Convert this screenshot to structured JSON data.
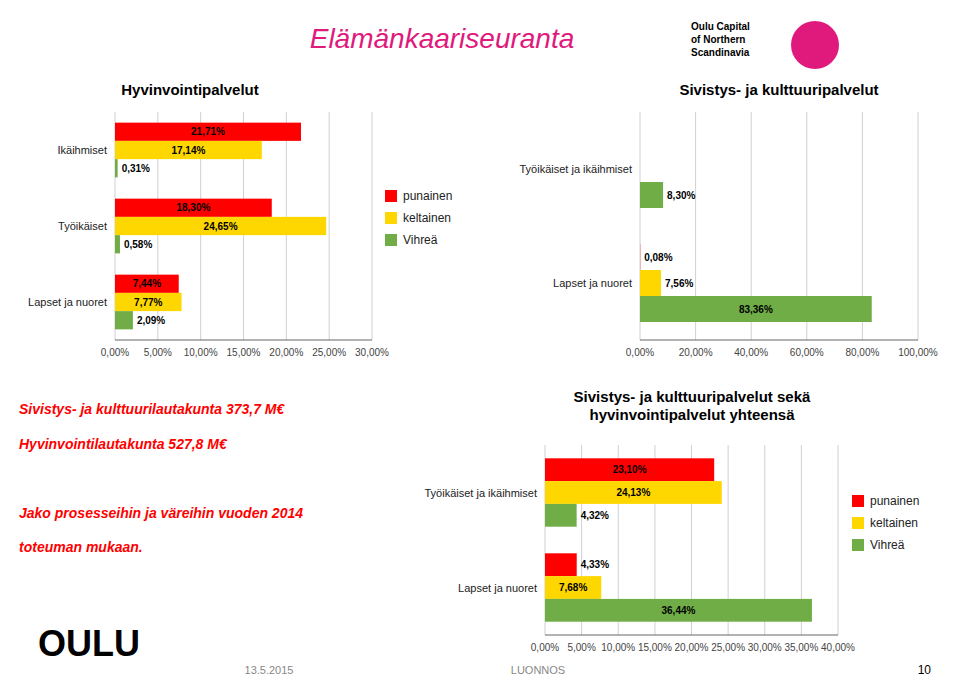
{
  "title": "Elämänkaariseuranta",
  "annotations": [
    "Oulu Capital\nof Northern\nScandinavia",
    "Sivistys- ja kulttuurilautakunta 373,7 M€",
    "Hyvinvointilautakunta 527,8 M€",
    "Jako prosesseihin ja väreihin vuoden 2014",
    "toteuman mukaan.",
    "OULU",
    "13.5.2015",
    "LUONNOS",
    "10"
  ],
  "chart_data": [
    {
      "type": "bar",
      "orientation": "horizontal",
      "title": "Hyvinvointipalvelut",
      "categories": [
        "Ikäihmiset",
        "Työikäiset",
        "Lapset ja nuoret"
      ],
      "series": [
        {
          "name": "punainen",
          "color": "#FF0000",
          "values": [
            21.71,
            18.3,
            7.44
          ],
          "value_labels": [
            "21,71%",
            "18,30%",
            "7,44%"
          ]
        },
        {
          "name": "keltainen",
          "color": "#FFD700",
          "values": [
            17.14,
            24.65,
            7.77
          ],
          "value_labels": [
            "17,14%",
            "24,65%",
            "7,77%"
          ]
        },
        {
          "name": "Vihreä",
          "color": "#70AD47",
          "values": [
            0.31,
            0.58,
            2.09
          ],
          "value_labels": [
            "0,31%",
            "0,58%",
            "2,09%"
          ]
        }
      ],
      "xlim": [
        0,
        30
      ],
      "xticks": [
        {
          "value": 0,
          "label": "0,00%"
        },
        {
          "value": 5,
          "label": "5,00%"
        },
        {
          "value": 10,
          "label": "10,00%"
        },
        {
          "value": 15,
          "label": "15,00%"
        },
        {
          "value": 20,
          "label": "20,00%"
        },
        {
          "value": 25,
          "label": "25,00%"
        },
        {
          "value": 30,
          "label": "30,00%"
        }
      ],
      "grid": true,
      "data_labels": true,
      "legend": "right"
    },
    {
      "type": "bar",
      "orientation": "horizontal",
      "title": "Sivistys- ja kulttuuripalvelut",
      "categories": [
        "Työikäiset ja ikäihmiset",
        "Lapset ja nuoret"
      ],
      "series": [
        {
          "name": "punainen",
          "color": "#FF0000",
          "values": [
            0.0,
            0.08
          ],
          "value_labels": [
            null,
            "0,08%"
          ]
        },
        {
          "name": "keltainen",
          "color": "#FFD700",
          "values": [
            0.0,
            7.56
          ],
          "value_labels": [
            null,
            "7,56%"
          ]
        },
        {
          "name": "Vihreä",
          "color": "#70AD47",
          "values": [
            8.3,
            83.36
          ],
          "value_labels": [
            "8,30%",
            "83,36%"
          ]
        }
      ],
      "xlim": [
        0,
        100
      ],
      "xticks": [
        {
          "value": 0,
          "label": "0,00%"
        },
        {
          "value": 20,
          "label": "20,00%"
        },
        {
          "value": 40,
          "label": "40,00%"
        },
        {
          "value": 60,
          "label": "60,00%"
        },
        {
          "value": 80,
          "label": "80,00%"
        },
        {
          "value": 100,
          "label": "100,00%"
        }
      ],
      "grid": true,
      "data_labels": true
    },
    {
      "type": "bar",
      "orientation": "horizontal",
      "title": "Sivistys- ja kulttuuripalvelut sekä\nhyvinvointipalvelut yhteensä",
      "categories": [
        "Työikäiset ja ikäihmiset",
        "Lapset ja nuoret"
      ],
      "series": [
        {
          "name": "punainen",
          "color": "#FF0000",
          "values": [
            23.1,
            4.33
          ],
          "value_labels": [
            "23,10%",
            "4,33%"
          ]
        },
        {
          "name": "keltainen",
          "color": "#FFD700",
          "values": [
            24.13,
            7.68
          ],
          "value_labels": [
            "24,13%",
            "7,68%"
          ]
        },
        {
          "name": "Vihreä",
          "color": "#70AD47",
          "values": [
            4.32,
            36.44
          ],
          "value_labels": [
            "4,32%",
            "36,44%"
          ]
        }
      ],
      "xlim": [
        0,
        40
      ],
      "xticks": [
        {
          "value": 0,
          "label": "0,00%"
        },
        {
          "value": 5,
          "label": "5,00%"
        },
        {
          "value": 10,
          "label": "10,00%"
        },
        {
          "value": 15,
          "label": "15,00%"
        },
        {
          "value": 20,
          "label": "20,00%"
        },
        {
          "value": 25,
          "label": "25,00%"
        },
        {
          "value": 30,
          "label": "30,00%"
        },
        {
          "value": 35,
          "label": "35,00%"
        },
        {
          "value": 40,
          "label": "40,00%"
        }
      ],
      "grid": true,
      "data_labels": true,
      "legend": "right"
    }
  ]
}
